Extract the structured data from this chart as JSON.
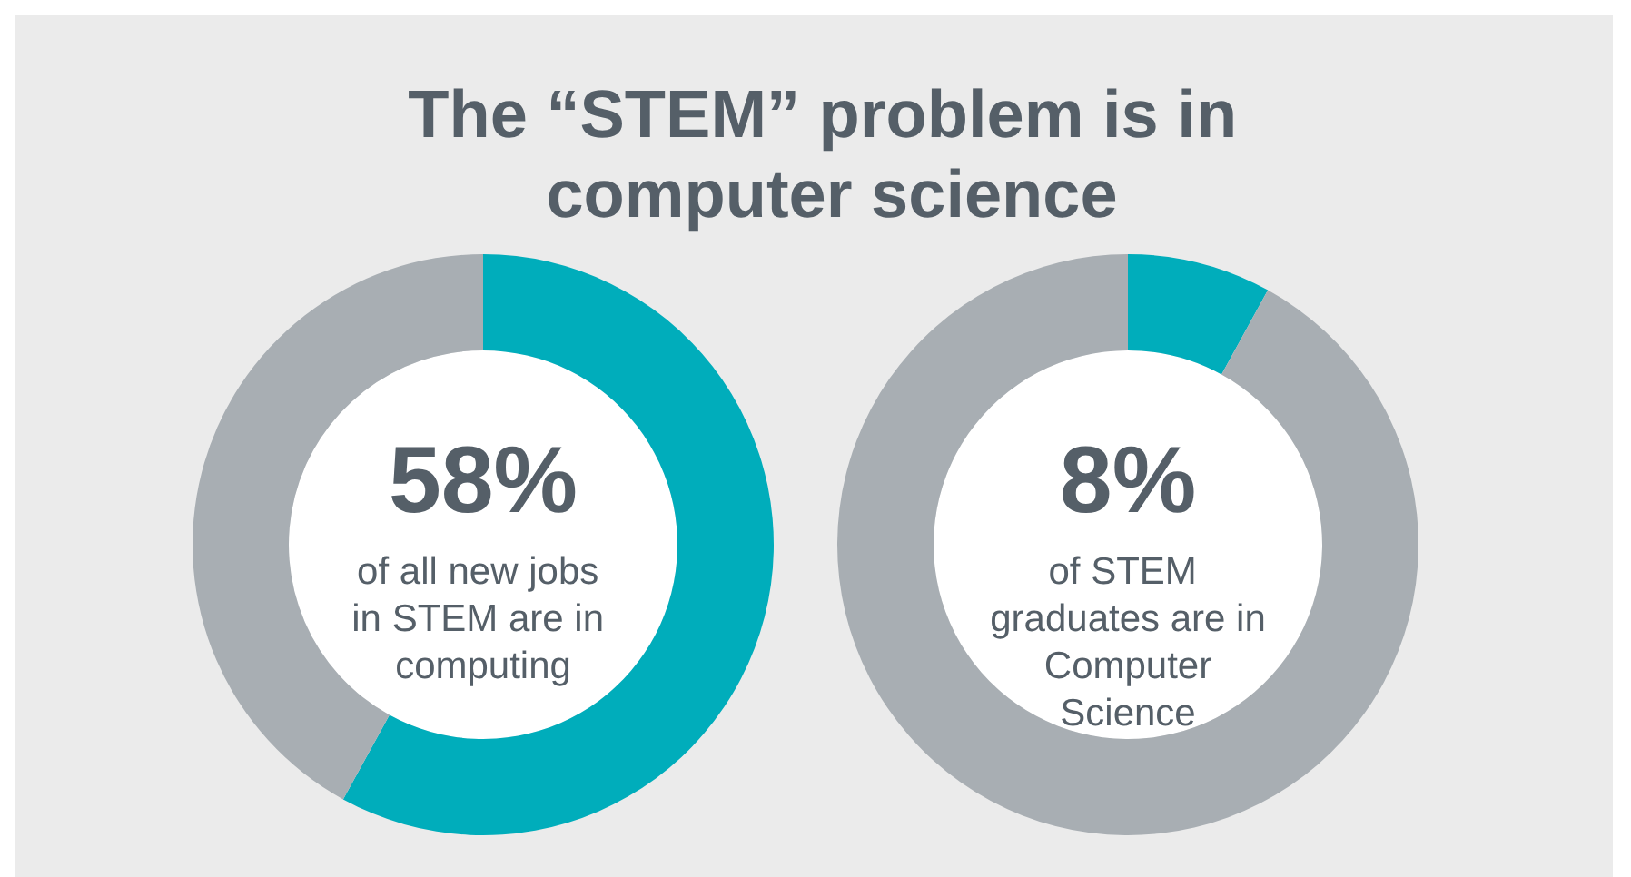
{
  "chart_data": [
    {
      "type": "donut",
      "title": "The “STEM” problem is in computer science",
      "categories": [
        null,
        null
      ],
      "values": [
        58,
        42
      ],
      "colors": [
        "#00adbb",
        "#a8aeb3"
      ],
      "value_labels": [
        "58%",
        null
      ],
      "annotations": [
        "of all new jobs in STEM are in computing"
      ]
    },
    {
      "type": "donut",
      "categories": [
        null,
        null
      ],
      "values": [
        8,
        92
      ],
      "colors": [
        "#00adbb",
        "#a8aeb3"
      ],
      "value_labels": [
        "8%",
        null
      ],
      "annotations": [
        "of STEM graduates are in Computer Science"
      ]
    }
  ]
}
